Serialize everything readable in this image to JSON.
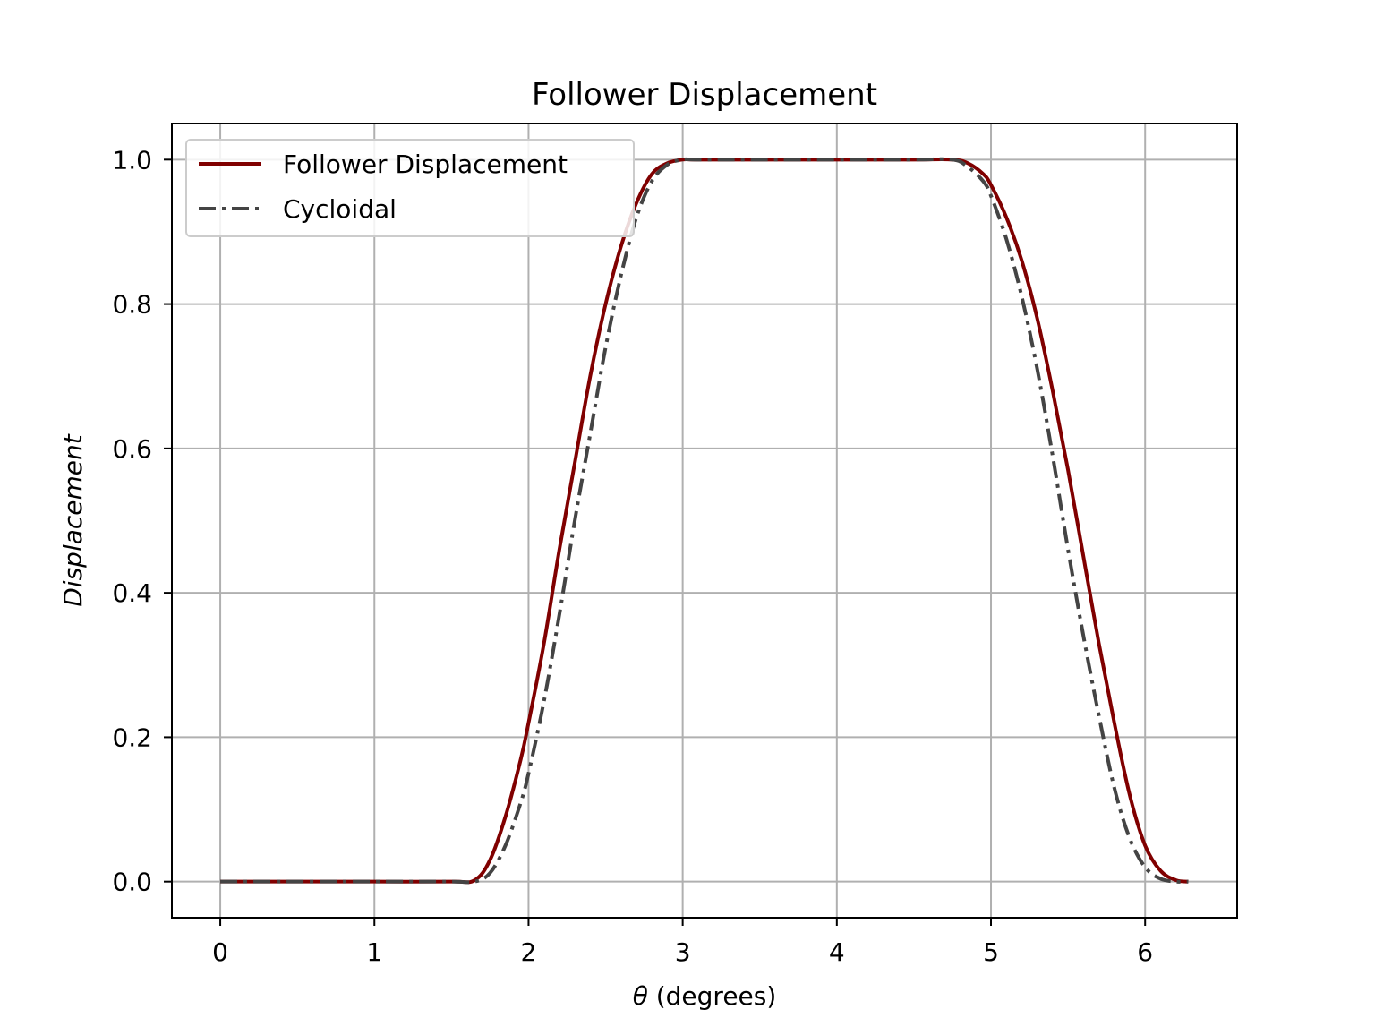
{
  "chart_data": {
    "type": "line",
    "title": "Follower Displacement",
    "xlabel_symbol": "θ",
    "xlabel_text": " (degrees)",
    "ylabel": "Displacement",
    "xlim": [
      -0.314,
      6.597
    ],
    "ylim": [
      -0.05,
      1.05
    ],
    "xticks": [
      0,
      1,
      2,
      3,
      4,
      5,
      6
    ],
    "yticks": [
      0.0,
      0.2,
      0.4,
      0.6,
      0.8,
      1.0
    ],
    "xtick_labels": [
      "0",
      "1",
      "2",
      "3",
      "4",
      "5",
      "6"
    ],
    "ytick_labels": [
      "0.0",
      "0.2",
      "0.4",
      "0.6",
      "0.8",
      "1.0"
    ],
    "grid": true,
    "legend_position": "top-left",
    "series": [
      {
        "name": "Follower Displacement",
        "color": "#800000",
        "style": "solid",
        "x": [
          0,
          0.5,
          1.0,
          1.5,
          1.65,
          1.75,
          1.85,
          1.95,
          2.0,
          2.1,
          2.2,
          2.3,
          2.4,
          2.5,
          2.6,
          2.7,
          2.8,
          2.9,
          3.0,
          3.1,
          3.5,
          4.0,
          4.5,
          4.75,
          4.85,
          4.95,
          5.0,
          5.1,
          5.2,
          5.3,
          5.4,
          5.5,
          5.6,
          5.7,
          5.8,
          5.9,
          6.0,
          6.1,
          6.2,
          6.28
        ],
        "y": [
          0,
          0,
          0,
          0,
          0.002,
          0.03,
          0.09,
          0.17,
          0.22,
          0.33,
          0.46,
          0.58,
          0.7,
          0.8,
          0.88,
          0.94,
          0.98,
          0.995,
          1.0,
          1.0,
          1.0,
          1.0,
          1.0,
          1.0,
          0.995,
          0.98,
          0.965,
          0.92,
          0.86,
          0.78,
          0.68,
          0.57,
          0.45,
          0.33,
          0.22,
          0.12,
          0.05,
          0.015,
          0.002,
          0
        ]
      },
      {
        "name": "Cycloidal",
        "color": "#444444",
        "style": "dashdot",
        "x": [
          0,
          0.5,
          1.0,
          1.5,
          1.65,
          1.75,
          1.85,
          1.95,
          2.0,
          2.1,
          2.2,
          2.3,
          2.4,
          2.5,
          2.6,
          2.7,
          2.8,
          2.9,
          3.0,
          3.1,
          3.5,
          4.0,
          4.5,
          4.75,
          4.85,
          4.95,
          5.0,
          5.1,
          5.2,
          5.3,
          5.4,
          5.5,
          5.6,
          5.7,
          5.8,
          5.9,
          6.0,
          6.1,
          6.2,
          6.28
        ],
        "y": [
          0,
          0,
          0,
          0,
          0.0,
          0.012,
          0.05,
          0.11,
          0.15,
          0.25,
          0.37,
          0.5,
          0.62,
          0.74,
          0.84,
          0.92,
          0.97,
          0.993,
          1.0,
          1.0,
          1.0,
          1.0,
          1.0,
          1.0,
          0.99,
          0.97,
          0.95,
          0.89,
          0.81,
          0.71,
          0.59,
          0.46,
          0.34,
          0.23,
          0.13,
          0.06,
          0.02,
          0.004,
          0.0,
          0
        ]
      }
    ]
  }
}
